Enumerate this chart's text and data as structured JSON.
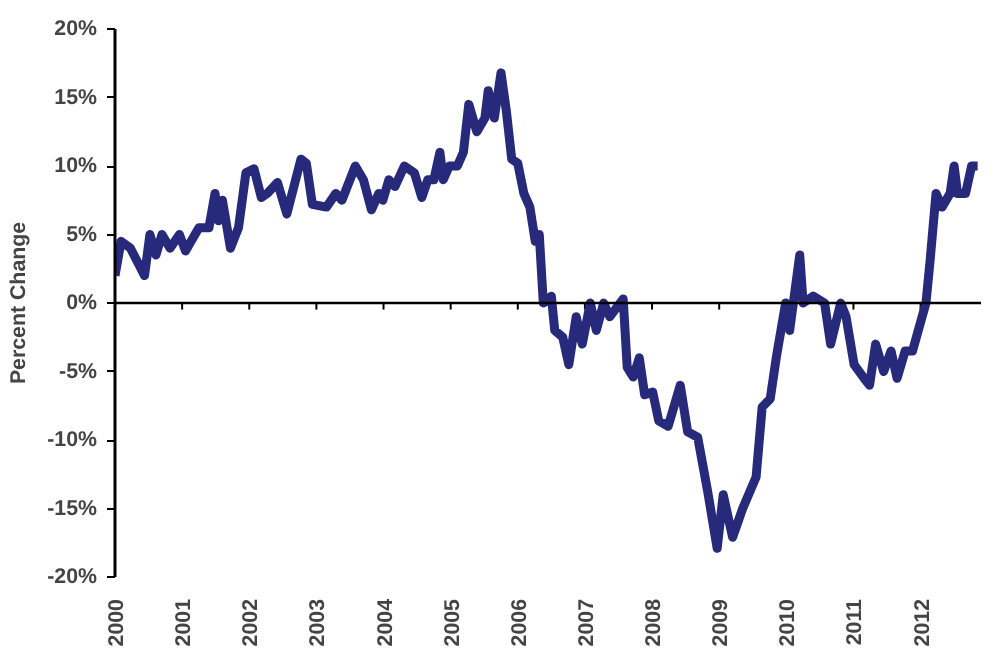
{
  "chart_data": {
    "type": "line",
    "ylabel": "Percent Change",
    "x": [
      2000.0,
      2000.09,
      2000.23,
      2000.44,
      2000.52,
      2000.61,
      2000.7,
      2000.82,
      2000.96,
      2001.05,
      2001.25,
      2001.4,
      2001.49,
      2001.54,
      2001.6,
      2001.72,
      2001.84,
      2001.95,
      2002.07,
      2002.18,
      2002.27,
      2002.42,
      2002.56,
      2002.77,
      2002.85,
      2002.94,
      2003.15,
      2003.29,
      2003.38,
      2003.58,
      2003.7,
      2003.82,
      2003.93,
      2003.99,
      2004.08,
      2004.17,
      2004.31,
      2004.46,
      2004.57,
      2004.66,
      2004.75,
      2004.84,
      2004.89,
      2004.98,
      2005.1,
      2005.19,
      2005.27,
      2005.39,
      2005.51,
      2005.56,
      2005.65,
      2005.75,
      2005.83,
      2005.91,
      2006.0,
      2006.09,
      2006.18,
      2006.26,
      2006.32,
      2006.38,
      2006.5,
      2006.55,
      2006.67,
      2006.76,
      2006.87,
      2006.96,
      2007.08,
      2007.17,
      2007.28,
      2007.37,
      2007.57,
      2007.63,
      2007.72,
      2007.81,
      2007.89,
      2008.01,
      2008.1,
      2008.24,
      2008.42,
      2008.53,
      2008.68,
      2008.83,
      2008.97,
      2009.06,
      2009.2,
      2009.35,
      2009.55,
      2009.64,
      2009.76,
      2009.85,
      2009.99,
      2010.05,
      2010.2,
      2010.25,
      2010.4,
      2010.57,
      2010.66,
      2010.81,
      2010.89,
      2011.01,
      2011.16,
      2011.24,
      2011.33,
      2011.45,
      2011.56,
      2011.65,
      2011.77,
      2011.88,
      2012.08,
      2012.14,
      2012.23,
      2012.32,
      2012.44,
      2012.5,
      2012.55,
      2012.67,
      2012.76,
      2012.85
    ],
    "series": [
      {
        "color": "#272a7a",
        "values": [
          2.0,
          4.5,
          4.0,
          2.0,
          5.0,
          3.5,
          5.0,
          4.0,
          5.0,
          3.8,
          5.5,
          5.5,
          8.0,
          6.0,
          7.5,
          4.0,
          5.5,
          9.5,
          9.8,
          7.7,
          8.0,
          8.8,
          6.5,
          10.5,
          10.2,
          7.2,
          7.0,
          8.0,
          7.5,
          10.0,
          9.0,
          6.8,
          8.0,
          7.5,
          9.0,
          8.5,
          10.0,
          9.5,
          7.7,
          9.0,
          9.0,
          11.0,
          9.0,
          10.0,
          10.0,
          11.0,
          14.5,
          12.5,
          13.5,
          15.5,
          13.5,
          16.8,
          14.0,
          10.5,
          10.2,
          8.0,
          7.0,
          4.5,
          5.0,
          0.0,
          0.5,
          -2.0,
          -2.5,
          -4.5,
          -1.0,
          -3.0,
          0.0,
          -2.0,
          0.0,
          -1.0,
          0.3,
          -4.7,
          -5.4,
          -4.0,
          -6.7,
          -6.5,
          -8.6,
          -9.0,
          -6.0,
          -9.4,
          -9.8,
          -13.8,
          -17.9,
          -14.0,
          -17.1,
          -15.0,
          -12.7,
          -7.6,
          -7.0,
          -4.0,
          0.0,
          -2.0,
          3.5,
          0.0,
          0.5,
          0.0,
          -3.0,
          0.0,
          -1.0,
          -4.5,
          -5.5,
          -6.0,
          -3.0,
          -5.0,
          -3.5,
          -5.5,
          -3.5,
          -3.5,
          0.0,
          3.0,
          8.0,
          7.0,
          8.0,
          10.0,
          8.0,
          8.0,
          10.0,
          10.0
        ]
      }
    ],
    "xlim": [
      2000,
      2012.9
    ],
    "xticks": [
      2000,
      2001,
      2002,
      2003,
      2004,
      2005,
      2006,
      2007,
      2008,
      2009,
      2010,
      2011,
      2012
    ],
    "ylim": [
      -20,
      20
    ],
    "yticks": [
      {
        "value": -20,
        "label": "-20%"
      },
      {
        "value": -15,
        "label": "-15%"
      },
      {
        "value": -10,
        "label": "-10%"
      },
      {
        "value": -5,
        "label": "-5%"
      },
      {
        "value": 0,
        "label": "0%"
      },
      {
        "value": 5,
        "label": "5%"
      },
      {
        "value": 10,
        "label": "10%"
      },
      {
        "value": 15,
        "label": "15%"
      },
      {
        "value": 20,
        "label": "20%"
      }
    ],
    "ref_lines": [
      {
        "axis": "y",
        "value": 0,
        "label": null,
        "color": "#000000"
      }
    ],
    "grid": false,
    "line_style": "solid",
    "marker": "none"
  }
}
